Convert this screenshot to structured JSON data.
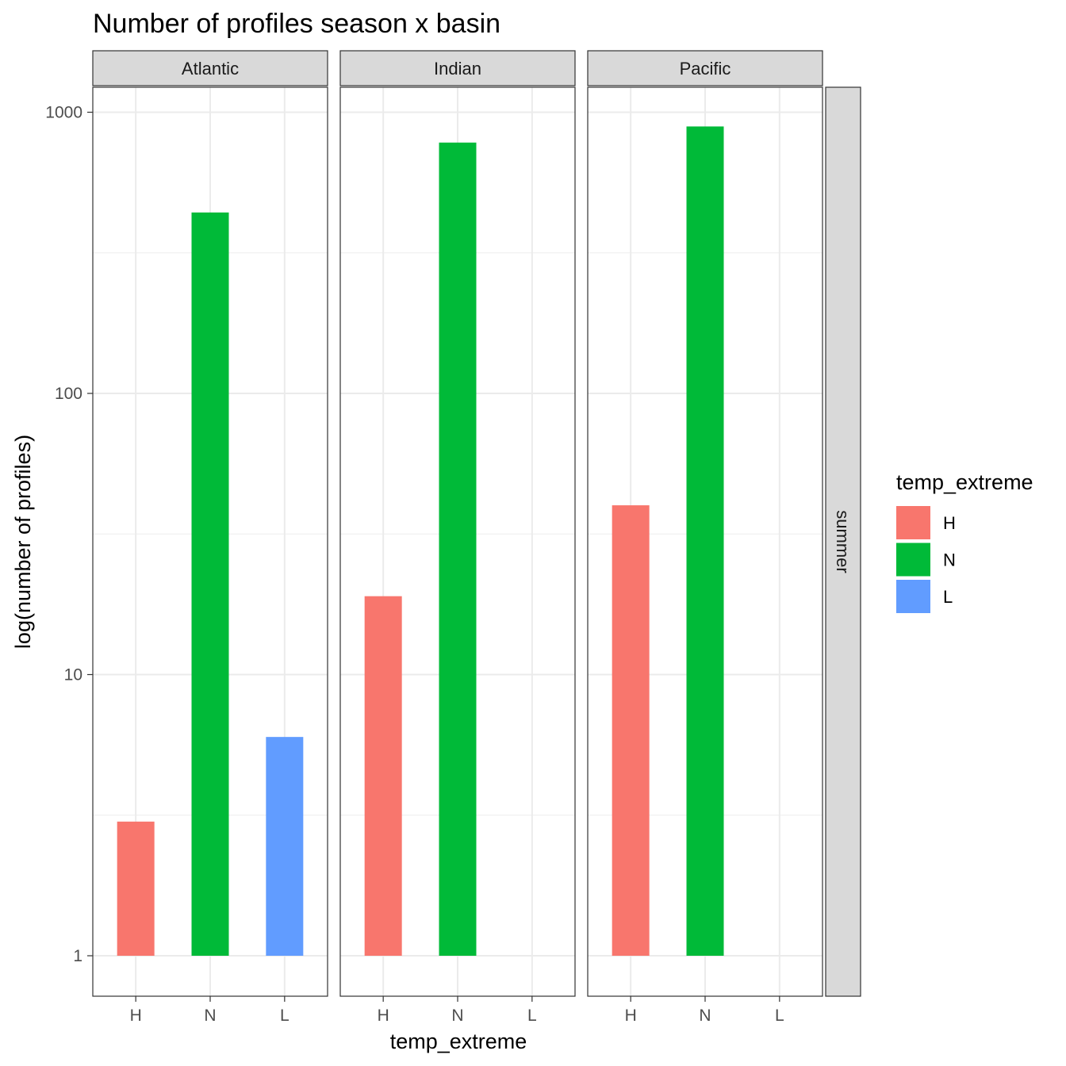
{
  "chart_data": {
    "type": "bar",
    "title": "Number of profiles season x basin",
    "xlabel": "temp_extreme",
    "ylabel": "log(number of profiles)",
    "y_scale": "log10",
    "ylim": [
      0.7,
      1300
    ],
    "y_ticks": [
      1,
      10,
      100,
      1000
    ],
    "y_tick_labels": [
      "1",
      "10",
      "100",
      "1000"
    ],
    "categories": [
      "H",
      "N",
      "L"
    ],
    "grid": true,
    "row_facet": "summer",
    "legend": {
      "title": "temp_extreme",
      "position": "right",
      "entries": [
        {
          "label": "H",
          "color": "#F8766D"
        },
        {
          "label": "N",
          "color": "#00BA38"
        },
        {
          "label": "L",
          "color": "#619CFF"
        }
      ]
    },
    "panels": [
      {
        "name": "Atlantic",
        "values": [
          3,
          440,
          6
        ]
      },
      {
        "name": "Indian",
        "values": [
          19,
          780,
          null
        ]
      },
      {
        "name": "Pacific",
        "values": [
          40,
          890,
          null
        ]
      }
    ]
  }
}
